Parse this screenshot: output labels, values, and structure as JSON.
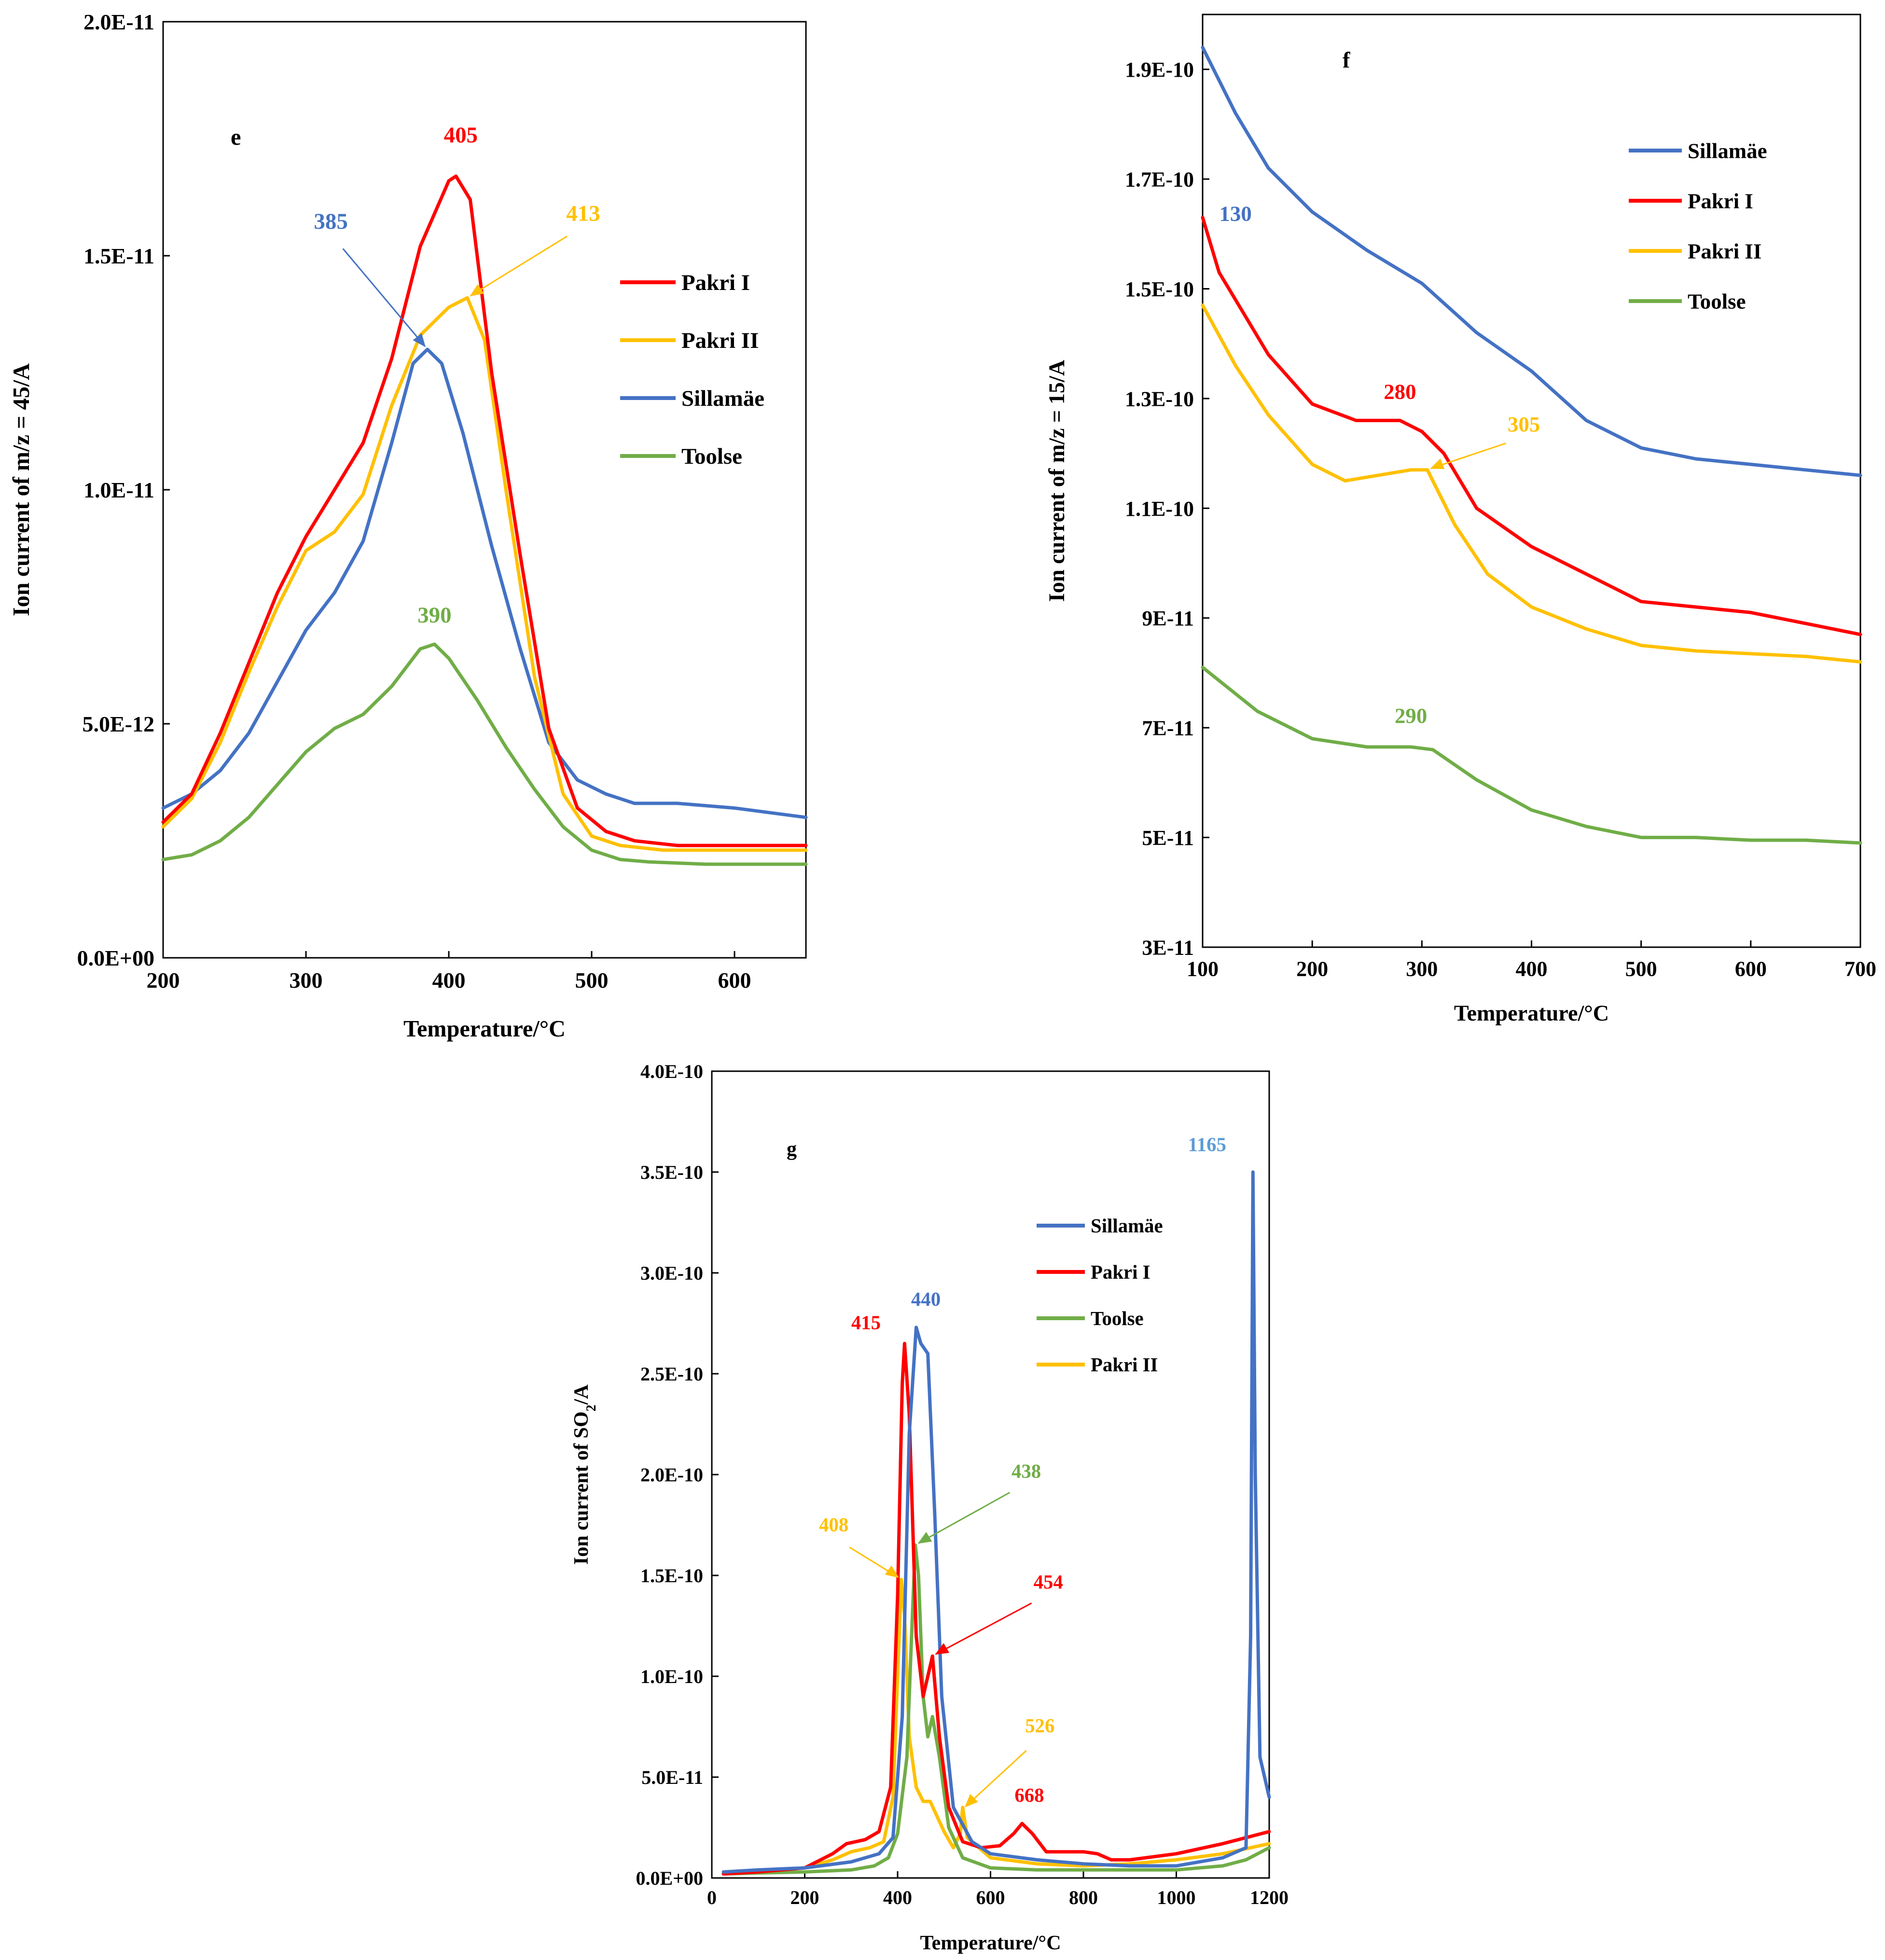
{
  "colors": {
    "Pakri I": "#ff0000",
    "Pakri II": "#ffc000",
    "Sillamäe": "#4472c4",
    "Toolse": "#70ad47",
    "Sillamäe peak": "#5b9bd5"
  },
  "chart_data": [
    {
      "type": "line",
      "panel_label": "e",
      "xlabel": "Temperature/°C",
      "ylabel": "Ion current of m/z = 45/A",
      "xlim": [
        200,
        650
      ],
      "ylim": [
        0,
        2e-11
      ],
      "xticks": [
        200,
        300,
        400,
        500,
        600
      ],
      "xtick_labels": [
        "200",
        "300",
        "400",
        "500",
        "600"
      ],
      "yticks": [
        0,
        5e-12,
        1e-11,
        1.5e-11,
        2e-11
      ],
      "ytick_labels": [
        "0.0E+00",
        "5.0E-12",
        "1.0E-11",
        "1.5E-11",
        "2.0E-11"
      ],
      "legend": [
        "Pakri I",
        "Pakri II",
        "Sillamäe",
        "Toolse"
      ],
      "series": [
        {
          "name": "Pakri I",
          "x": [
            200,
            220,
            240,
            260,
            280,
            300,
            320,
            340,
            360,
            380,
            400,
            405,
            415,
            430,
            450,
            470,
            490,
            510,
            530,
            560,
            600,
            650
          ],
          "y": [
            2.9e-12,
            3.5e-12,
            4.8e-12,
            6.3e-12,
            7.8e-12,
            9e-12,
            1e-11,
            1.1e-11,
            1.28e-11,
            1.52e-11,
            1.66e-11,
            1.67e-11,
            1.62e-11,
            1.25e-11,
            8.6e-12,
            4.9e-12,
            3.2e-12,
            2.7e-12,
            2.5e-12,
            2.4e-12,
            2.4e-12,
            2.4e-12
          ]
        },
        {
          "name": "Pakri II",
          "x": [
            200,
            220,
            240,
            260,
            280,
            300,
            320,
            340,
            360,
            380,
            400,
            413,
            425,
            440,
            460,
            480,
            500,
            520,
            550,
            600,
            650
          ],
          "y": [
            2.8e-12,
            3.4e-12,
            4.6e-12,
            6.1e-12,
            7.5e-12,
            8.7e-12,
            9.1e-12,
            9.9e-12,
            1.18e-11,
            1.33e-11,
            1.39e-11,
            1.41e-11,
            1.32e-11,
            1e-11,
            6e-12,
            3.5e-12,
            2.6e-12,
            2.4e-12,
            2.3e-12,
            2.3e-12,
            2.3e-12
          ]
        },
        {
          "name": "Sillamäe",
          "x": [
            200,
            220,
            240,
            260,
            280,
            300,
            320,
            340,
            360,
            375,
            385,
            395,
            410,
            430,
            450,
            470,
            490,
            510,
            530,
            560,
            600,
            650
          ],
          "y": [
            3.2e-12,
            3.5e-12,
            4e-12,
            4.8e-12,
            5.9e-12,
            7e-12,
            7.8e-12,
            8.9e-12,
            1.1e-11,
            1.27e-11,
            1.3e-11,
            1.27e-11,
            1.12e-11,
            8.8e-12,
            6.6e-12,
            4.6e-12,
            3.8e-12,
            3.5e-12,
            3.3e-12,
            3.3e-12,
            3.2e-12,
            3e-12
          ]
        },
        {
          "name": "Toolse",
          "x": [
            200,
            220,
            240,
            260,
            280,
            300,
            320,
            340,
            360,
            380,
            390,
            400,
            420,
            440,
            460,
            480,
            500,
            520,
            540,
            580,
            620,
            650
          ],
          "y": [
            2.1e-12,
            2.2e-12,
            2.5e-12,
            3e-12,
            3.7e-12,
            4.4e-12,
            4.9e-12,
            5.2e-12,
            5.8e-12,
            6.6e-12,
            6.7e-12,
            6.4e-12,
            5.5e-12,
            4.5e-12,
            3.6e-12,
            2.8e-12,
            2.3e-12,
            2.1e-12,
            2.05e-12,
            2e-12,
            2e-12,
            2e-12
          ]
        }
      ],
      "annotations": [
        {
          "text": "405",
          "series": "Pakri I",
          "x": 405,
          "y": 1.67e-11,
          "arrow": false
        },
        {
          "text": "413",
          "series": "Pakri II",
          "x": 413,
          "y": 1.41e-11,
          "arrow": true
        },
        {
          "text": "385",
          "series": "Sillamäe",
          "x": 385,
          "y": 1.3e-11,
          "arrow": true
        },
        {
          "text": "390",
          "series": "Toolse",
          "x": 390,
          "y": 6.7e-12,
          "arrow": false
        }
      ]
    },
    {
      "type": "line",
      "panel_label": "f",
      "xlabel": "Temperature/°C",
      "ylabel": "Ion current of m/z = 15/A",
      "xlim": [
        100,
        700
      ],
      "ylim": [
        3e-11,
        2e-10
      ],
      "xticks": [
        100,
        200,
        300,
        400,
        500,
        600,
        700
      ],
      "xtick_labels": [
        "100",
        "200",
        "300",
        "400",
        "500",
        "600",
        "700"
      ],
      "yticks": [
        3e-11,
        5e-11,
        7e-11,
        9e-11,
        1.1e-10,
        1.3e-10,
        1.5e-10,
        1.7e-10,
        1.9e-10
      ],
      "ytick_labels": [
        "3E-11",
        "5E-11",
        "7E-11",
        "9E-11",
        "1.1E-10",
        "1.3E-10",
        "1.5E-10",
        "1.7E-10",
        "1.9E-10"
      ],
      "legend": [
        "Sillamäe",
        "Pakri I",
        "Pakri II",
        "Toolse"
      ],
      "series": [
        {
          "name": "Sillamäe",
          "x": [
            100,
            130,
            160,
            200,
            250,
            300,
            350,
            400,
            450,
            500,
            550,
            600,
            650,
            700
          ],
          "y": [
            1.94e-10,
            1.82e-10,
            1.72e-10,
            1.64e-10,
            1.57e-10,
            1.51e-10,
            1.42e-10,
            1.35e-10,
            1.26e-10,
            1.21e-10,
            1.19e-10,
            1.18e-10,
            1.17e-10,
            1.16e-10
          ]
        },
        {
          "name": "Pakri I",
          "x": [
            100,
            115,
            130,
            160,
            200,
            240,
            280,
            300,
            320,
            350,
            400,
            450,
            500,
            550,
            600,
            650,
            700
          ],
          "y": [
            1.63e-10,
            1.53e-10,
            1.48e-10,
            1.38e-10,
            1.29e-10,
            1.26e-10,
            1.26e-10,
            1.24e-10,
            1.2e-10,
            1.1e-10,
            1.03e-10,
            9.8e-11,
            9.3e-11,
            9.2e-11,
            9.1e-11,
            8.9e-11,
            8.7e-11
          ]
        },
        {
          "name": "Pakri II",
          "x": [
            100,
            130,
            160,
            200,
            230,
            260,
            290,
            305,
            315,
            330,
            360,
            400,
            450,
            500,
            550,
            600,
            650,
            700
          ],
          "y": [
            1.47e-10,
            1.36e-10,
            1.27e-10,
            1.18e-10,
            1.15e-10,
            1.16e-10,
            1.17e-10,
            1.17e-10,
            1.13e-10,
            1.07e-10,
            9.8e-11,
            9.2e-11,
            8.8e-11,
            8.5e-11,
            8.4e-11,
            8.35e-11,
            8.3e-11,
            8.2e-11
          ]
        },
        {
          "name": "Toolse",
          "x": [
            100,
            150,
            200,
            250,
            290,
            310,
            350,
            400,
            450,
            500,
            550,
            600,
            650,
            700
          ],
          "y": [
            8.1e-11,
            7.3e-11,
            6.8e-11,
            6.65e-11,
            6.65e-11,
            6.6e-11,
            6.05e-11,
            5.5e-11,
            5.2e-11,
            5e-11,
            5e-11,
            4.95e-11,
            4.95e-11,
            4.9e-11
          ]
        }
      ],
      "annotations": [
        {
          "text": "130",
          "series": "Sillamäe",
          "x": 130,
          "y": 1.58e-10,
          "arrow": false
        },
        {
          "text": "280",
          "series": "Pakri I",
          "x": 280,
          "y": 1.26e-10,
          "arrow": false
        },
        {
          "text": "305",
          "series": "Pakri II",
          "x": 305,
          "y": 1.17e-10,
          "arrow": true
        },
        {
          "text": "290",
          "series": "Toolse",
          "x": 290,
          "y": 6.65e-11,
          "arrow": false
        }
      ]
    },
    {
      "type": "line",
      "panel_label": "g",
      "xlabel": "Temperature/°C",
      "ylabel": "Ion current of SO2/A",
      "ylabel_main": "Ion current of SO",
      "ylabel_sub": "2",
      "ylabel_tail": "/A",
      "xlim": [
        0,
        1200
      ],
      "ylim": [
        0,
        4e-10
      ],
      "xticks": [
        0,
        200,
        400,
        600,
        800,
        1000,
        1200
      ],
      "xtick_labels": [
        "0",
        "200",
        "400",
        "600",
        "800",
        "1000",
        "1200"
      ],
      "yticks": [
        0,
        5e-11,
        1e-10,
        1.5e-10,
        2e-10,
        2.5e-10,
        3e-10,
        3.5e-10,
        4e-10
      ],
      "ytick_labels": [
        "0.0E+00",
        "5.0E-11",
        "1.0E-10",
        "1.5E-10",
        "2.0E-10",
        "2.5E-10",
        "3.0E-10",
        "3.5E-10",
        "4.0E-10"
      ],
      "legend": [
        "Sillamäe",
        "Pakri I",
        "Toolse",
        "Pakri II"
      ],
      "series": [
        {
          "name": "Sillamäe",
          "x": [
            25,
            100,
            200,
            300,
            360,
            390,
            410,
            425,
            440,
            450,
            465,
            480,
            495,
            520,
            560,
            600,
            700,
            800,
            900,
            1000,
            1100,
            1150,
            1160,
            1165,
            1170,
            1180,
            1200
          ],
          "y": [
            3e-12,
            4e-12,
            5e-12,
            8e-12,
            1.2e-11,
            2e-11,
            8e-11,
            2.2e-10,
            2.73e-10,
            2.65e-10,
            2.6e-10,
            1.8e-10,
            9e-11,
            3.5e-11,
            1.8e-11,
            1.2e-11,
            9e-12,
            7e-12,
            6e-12,
            6e-12,
            1e-11,
            1.5e-11,
            1.2e-10,
            3.5e-10,
            2e-10,
            6e-11,
            4e-11
          ]
        },
        {
          "name": "Pakri I",
          "x": [
            25,
            100,
            200,
            260,
            290,
            330,
            360,
            385,
            400,
            410,
            415,
            425,
            440,
            455,
            465,
            475,
            490,
            510,
            540,
            580,
            620,
            650,
            668,
            690,
            720,
            800,
            830,
            860,
            900,
            1000,
            1100,
            1200
          ],
          "y": [
            2e-12,
            3e-12,
            5e-12,
            1.2e-11,
            1.7e-11,
            1.9e-11,
            2.3e-11,
            4.5e-11,
            1.4e-10,
            2.45e-10,
            2.65e-10,
            2.3e-10,
            1.2e-10,
            9e-11,
            1e-10,
            1.1e-10,
            7e-11,
            3.5e-11,
            1.8e-11,
            1.5e-11,
            1.6e-11,
            2.2e-11,
            2.7e-11,
            2.2e-11,
            1.3e-11,
            1.3e-11,
            1.2e-11,
            9e-12,
            9e-12,
            1.2e-11,
            1.7e-11,
            2.3e-11
          ]
        },
        {
          "name": "Toolse",
          "x": [
            25,
            100,
            200,
            300,
            350,
            380,
            400,
            420,
            430,
            438,
            445,
            455,
            465,
            475,
            490,
            510,
            540,
            600,
            700,
            800,
            900,
            1000,
            1100,
            1150,
            1200
          ],
          "y": [
            2e-12,
            2.5e-12,
            3e-12,
            4e-12,
            6e-12,
            1e-11,
            2.2e-11,
            6e-11,
            1.2e-10,
            1.65e-10,
            1.5e-10,
            9e-11,
            7e-11,
            8e-11,
            6e-11,
            2.5e-11,
            1e-11,
            5e-12,
            4e-12,
            4e-12,
            4e-12,
            4e-12,
            6e-12,
            9e-12,
            1.5e-11
          ]
        },
        {
          "name": "Pakri II",
          "x": [
            25,
            100,
            200,
            260,
            300,
            340,
            370,
            390,
            400,
            408,
            415,
            425,
            440,
            455,
            470,
            480,
            500,
            520,
            535,
            540,
            550,
            600,
            700,
            800,
            900,
            1000,
            1100,
            1200
          ],
          "y": [
            2e-12,
            3e-12,
            5e-12,
            9e-12,
            1.3e-11,
            1.5e-11,
            1.8e-11,
            4e-11,
            1e-10,
            1.48e-10,
            1.3e-10,
            7e-11,
            4.5e-11,
            3.8e-11,
            3.8e-11,
            3.3e-11,
            2.3e-11,
            1.5e-11,
            2.2e-11,
            3.5e-11,
            2e-11,
            1e-11,
            7e-12,
            6e-12,
            7e-12,
            9e-12,
            1.2e-11,
            1.7e-11
          ]
        }
      ],
      "annotations": [
        {
          "text": "1165",
          "series": "Sillamäe",
          "color_key": "Sillamäe peak",
          "x": 1165,
          "y": 3.52e-10,
          "arrow": false
        },
        {
          "text": "440",
          "series": "Sillamäe",
          "x": 440,
          "y": 2.73e-10,
          "arrow": false
        },
        {
          "text": "415",
          "series": "Pakri I",
          "x": 415,
          "y": 2.65e-10,
          "arrow": false
        },
        {
          "text": "438",
          "series": "Toolse",
          "x": 438,
          "y": 1.65e-10,
          "arrow": true
        },
        {
          "text": "408",
          "series": "Pakri II",
          "x": 408,
          "y": 1.48e-10,
          "arrow": true
        },
        {
          "text": "454",
          "series": "Pakri I",
          "x": 475,
          "y": 1.1e-10,
          "arrow": true
        },
        {
          "text": "526",
          "series": "Pakri II",
          "x": 540,
          "y": 3.4e-11,
          "arrow": true
        },
        {
          "text": "668",
          "series": "Pakri I",
          "x": 668,
          "y": 2.7e-11,
          "arrow": false
        }
      ]
    }
  ]
}
